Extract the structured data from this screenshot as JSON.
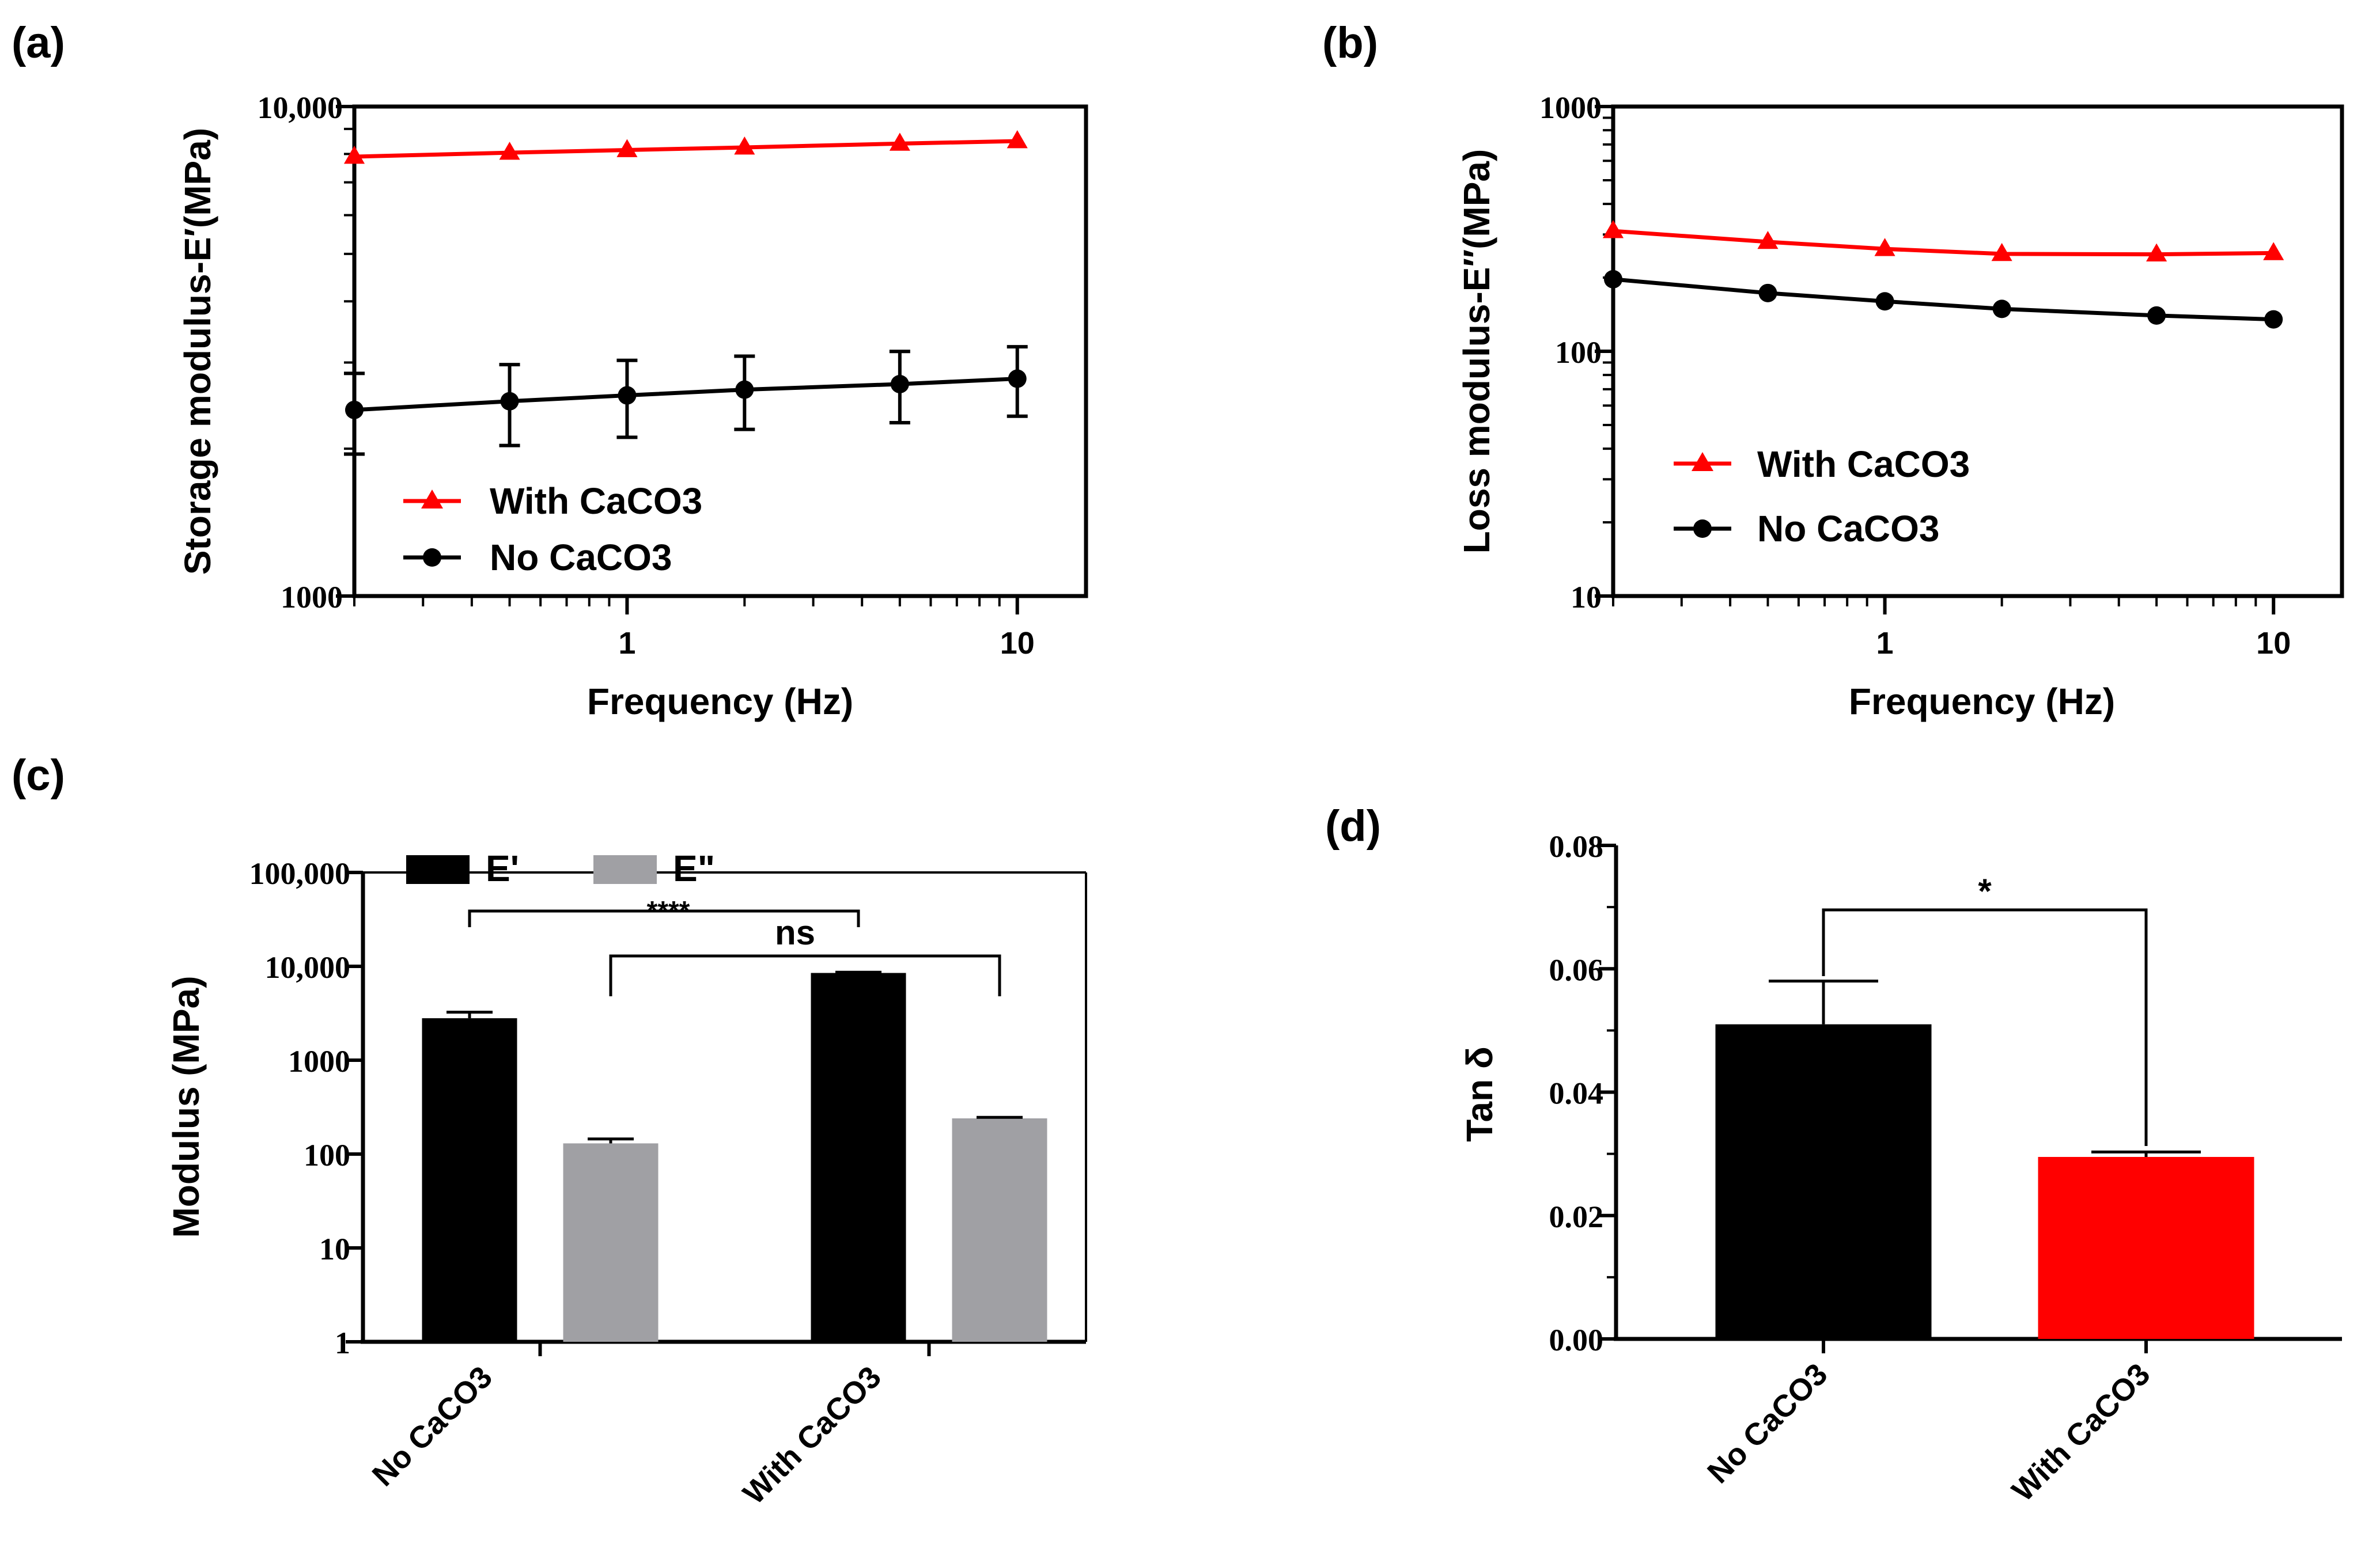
{
  "figure": {
    "panel_labels": [
      "(a)",
      "(b)",
      "(c)",
      "(d)"
    ]
  },
  "chart_data": [
    {
      "id": "a",
      "type": "line",
      "xscale": "log",
      "yscale": "log",
      "xlabel": "Frequency (Hz)",
      "ylabel": "Storage modulus-E′(MPa)",
      "xlim": [
        0.2,
        15
      ],
      "ylim": [
        1000,
        10000
      ],
      "xticks": [
        {
          "value": 1,
          "label": "1"
        },
        {
          "value": 10,
          "label": "10"
        }
      ],
      "yticks": [
        {
          "value": 1000,
          "label": "1000"
        },
        {
          "value": 10000,
          "label": "10,000"
        }
      ],
      "x": [
        0.2,
        0.5,
        1,
        2,
        5,
        10
      ],
      "series": [
        {
          "name": "With CaCO3",
          "color": "#ff0000",
          "marker": "triangle",
          "values": [
            7900,
            8050,
            8150,
            8250,
            8400,
            8500
          ]
        },
        {
          "name": "No CaCO3",
          "color": "#000000",
          "marker": "circle",
          "values": [
            2400,
            2500,
            2570,
            2640,
            2710,
            2780
          ],
          "errors": [
            450,
            470,
            460,
            450,
            450,
            450
          ]
        }
      ],
      "legend": {
        "placement": "bottom-left",
        "entries": [
          "With CaCO3",
          "No CaCO3"
        ]
      }
    },
    {
      "id": "b",
      "type": "line",
      "xscale": "log",
      "yscale": "log",
      "xlabel": "Frequency (Hz)",
      "ylabel": "Loss modulus-E″(MPa)",
      "xlim": [
        0.2,
        15
      ],
      "ylim": [
        10,
        1000
      ],
      "xticks": [
        {
          "value": 1,
          "label": "1"
        },
        {
          "value": 10,
          "label": "10"
        }
      ],
      "yticks": [
        {
          "value": 10,
          "label": "10"
        },
        {
          "value": 100,
          "label": "100"
        },
        {
          "value": 1000,
          "label": "1000"
        }
      ],
      "x": [
        0.2,
        0.5,
        1,
        2,
        5,
        10
      ],
      "series": [
        {
          "name": "With CaCO3",
          "color": "#ff0000",
          "marker": "triangle",
          "values": [
            310,
            280,
            262,
            250,
            249,
            252
          ]
        },
        {
          "name": "No CaCO3",
          "color": "#000000",
          "marker": "circle",
          "values": [
            197,
            173,
            160,
            149,
            140,
            135
          ]
        }
      ],
      "legend": {
        "placement": "bottom-left",
        "entries": [
          "With CaCO3",
          "No CaCO3"
        ]
      }
    },
    {
      "id": "c",
      "type": "bar",
      "yscale": "log",
      "ylabel": "Modulus (MPa)",
      "ylim": [
        1,
        100000
      ],
      "yticks": [
        {
          "value": 1,
          "label": "1"
        },
        {
          "value": 10,
          "label": "10"
        },
        {
          "value": 100,
          "label": "100"
        },
        {
          "value": 1000,
          "label": "1000"
        },
        {
          "value": 10000,
          "label": "10,000"
        },
        {
          "value": 100000,
          "label": "100,000"
        }
      ],
      "categories": [
        "No CaCO3",
        "With CaCO3"
      ],
      "series": [
        {
          "name": "E'",
          "color": "#000000",
          "values": [
            2800,
            8500
          ],
          "errors": [
            450,
            150
          ]
        },
        {
          "name": "E\"",
          "color": "#a0a0a4",
          "values": [
            130,
            240
          ],
          "errors": [
            15,
            6
          ]
        }
      ],
      "significance": [
        {
          "label": "****",
          "between": [
            "No CaCO3 E'",
            "With CaCO3 E'"
          ]
        },
        {
          "label": "ns",
          "between": [
            "No CaCO3 E\"",
            "With CaCO3 E\""
          ]
        }
      ],
      "legend": {
        "placement": "top-left",
        "entries": [
          "E'",
          "E\""
        ]
      }
    },
    {
      "id": "d",
      "type": "bar",
      "ylabel": "Tan δ",
      "ylim": [
        0,
        0.08
      ],
      "yticks": [
        {
          "value": 0,
          "label": "0.00"
        },
        {
          "value": 0.02,
          "label": "0.02"
        },
        {
          "value": 0.04,
          "label": "0.04"
        },
        {
          "value": 0.06,
          "label": "0.06"
        },
        {
          "value": 0.08,
          "label": "0.08"
        }
      ],
      "categories": [
        "No CaCO3",
        "With CaCO3"
      ],
      "values": [
        0.051,
        0.0295
      ],
      "errors": [
        0.007,
        0.0008
      ],
      "colors": [
        "#000000",
        "#ff0000"
      ],
      "significance": [
        {
          "label": "*",
          "between": [
            "No CaCO3",
            "With CaCO3"
          ]
        }
      ]
    }
  ]
}
